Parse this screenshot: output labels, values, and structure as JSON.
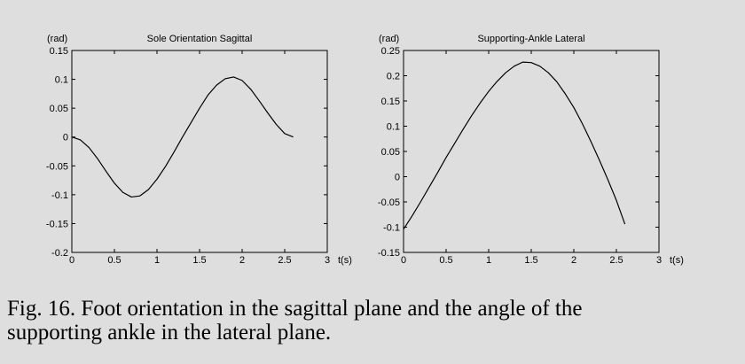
{
  "chart_data": [
    {
      "type": "line",
      "title": "Sole Orientation Sagittal",
      "y_unit": "(rad)",
      "x_unit": "t(s)",
      "xlim": [
        0,
        3
      ],
      "ylim": [
        -0.2,
        0.15
      ],
      "x_ticks": [
        "0",
        "0.5",
        "1",
        "1.5",
        "2",
        "2.5",
        "3"
      ],
      "y_ticks": [
        "-0.2",
        "-0.15",
        "-0.1",
        "-0.05",
        "0",
        "0.05",
        "0.1",
        "0.15"
      ],
      "grid": false,
      "series": [
        {
          "x": [
            0,
            0.1,
            0.2,
            0.3,
            0.4,
            0.5,
            0.6,
            0.7,
            0.8,
            0.9,
            1.0,
            1.1,
            1.2,
            1.3,
            1.4,
            1.5,
            1.6,
            1.7,
            1.8,
            1.9,
            2.0,
            2.1,
            2.2,
            2.3,
            2.4,
            2.5,
            2.6
          ],
          "y": [
            0,
            -0.005,
            -0.018,
            -0.037,
            -0.059,
            -0.08,
            -0.096,
            -0.104,
            -0.102,
            -0.091,
            -0.073,
            -0.051,
            -0.026,
            0.0,
            0.025,
            0.05,
            0.073,
            0.09,
            0.101,
            0.104,
            0.098,
            0.083,
            0.063,
            0.042,
            0.022,
            0.006,
            0.0
          ]
        }
      ]
    },
    {
      "type": "line",
      "title": "Supporting-Ankle Lateral",
      "y_unit": "(rad)",
      "x_unit": "t(s)",
      "xlim": [
        0,
        3
      ],
      "ylim": [
        -0.15,
        0.25
      ],
      "x_ticks": [
        "0",
        "0.5",
        "1",
        "1.5",
        "2",
        "2.5",
        "3"
      ],
      "y_ticks": [
        "-0.15",
        "-0.1",
        "-0.05",
        "0",
        "0.05",
        "0.1",
        "0.15",
        "0.2",
        "0.25"
      ],
      "grid": false,
      "series": [
        {
          "x": [
            0,
            0.1,
            0.2,
            0.3,
            0.4,
            0.5,
            0.6,
            0.7,
            0.8,
            0.9,
            1.0,
            1.1,
            1.2,
            1.3,
            1.4,
            1.5,
            1.6,
            1.7,
            1.8,
            1.9,
            2.0,
            2.1,
            2.2,
            2.3,
            2.4,
            2.5,
            2.6
          ],
          "y": [
            -0.104,
            -0.078,
            -0.05,
            -0.021,
            0.008,
            0.038,
            0.066,
            0.094,
            0.121,
            0.146,
            0.169,
            0.189,
            0.206,
            0.219,
            0.227,
            0.226,
            0.219,
            0.206,
            0.188,
            0.164,
            0.137,
            0.105,
            0.07,
            0.033,
            -0.006,
            -0.047,
            -0.094
          ]
        }
      ]
    }
  ],
  "caption": {
    "line1": "Fig. 16. Foot orientation in the sagittal plane and the angle of the",
    "line2": "supporting ankle in the lateral plane."
  }
}
